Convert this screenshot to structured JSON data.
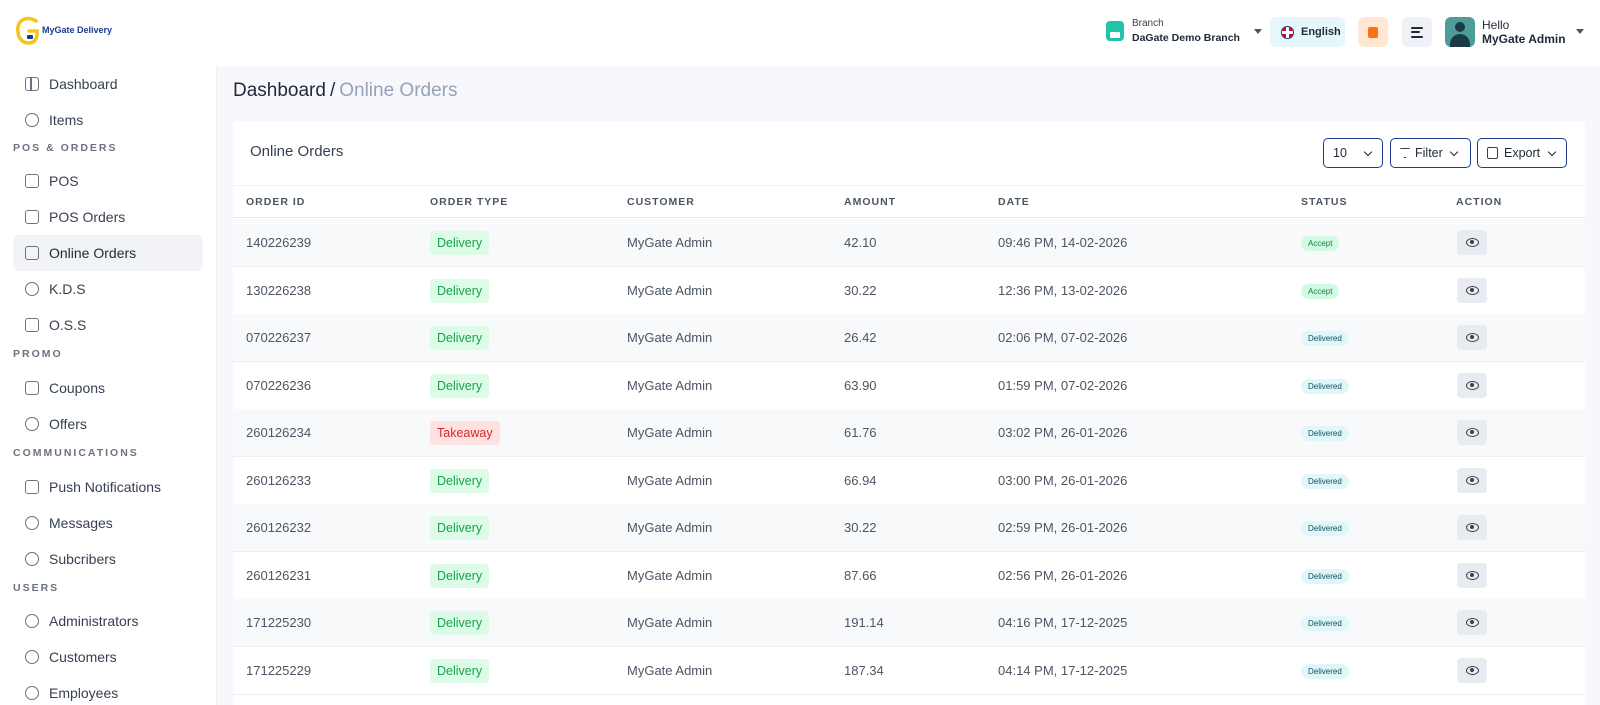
{
  "app": {
    "logo_text": "MyGate Delivery",
    "logo_icon": "g-logo-icon"
  },
  "header": {
    "branch_label": "Branch",
    "branch_name": "DaGate Demo Branch",
    "language": "English",
    "greeting": "Hello",
    "user_name": "MyGate Admin"
  },
  "sidebar": {
    "items": [
      {
        "label": "Dashboard",
        "icon": "grid-icon"
      },
      {
        "label": "Items",
        "icon": "box-icon"
      },
      {
        "label": "POS",
        "icon": "receipt-icon"
      },
      {
        "label": "POS Orders",
        "icon": "file-icon"
      },
      {
        "label": "Online Orders",
        "icon": "bag-icon"
      },
      {
        "label": "K.D.S",
        "icon": "chef-icon"
      },
      {
        "label": "O.S.S",
        "icon": "display-icon"
      },
      {
        "label": "Coupons",
        "icon": "ticket-icon"
      },
      {
        "label": "Offers",
        "icon": "discount-icon"
      },
      {
        "label": "Push Notifications",
        "icon": "bell-icon"
      },
      {
        "label": "Messages",
        "icon": "chat-icon"
      },
      {
        "label": "Subcribers",
        "icon": "subscriber-icon"
      },
      {
        "label": "Administrators",
        "icon": "user-icon"
      },
      {
        "label": "Customers",
        "icon": "users-icon"
      },
      {
        "label": "Employees",
        "icon": "employee-icon"
      }
    ],
    "sections": [
      "POS & ORDERS",
      "PROMO",
      "COMMUNICATIONS",
      "USERS"
    ]
  },
  "breadcrumb": {
    "root": "Dashboard",
    "separator": "/",
    "current": "Online Orders"
  },
  "card": {
    "title": "Online Orders",
    "per_page": "10",
    "filter_label": "Filter",
    "export_label": "Export"
  },
  "table": {
    "columns": [
      "ORDER ID",
      "ORDER TYPE",
      "CUSTOMER",
      "AMOUNT",
      "DATE",
      "STATUS",
      "ACTION"
    ],
    "rows": [
      {
        "id": "140226239",
        "type": "Delivery",
        "customer": "MyGate Admin",
        "amount": "42.10",
        "date": "09:46 PM, 14-02-2026",
        "status": "Accept"
      },
      {
        "id": "130226238",
        "type": "Delivery",
        "customer": "MyGate Admin",
        "amount": "30.22",
        "date": "12:36 PM, 13-02-2026",
        "status": "Accept"
      },
      {
        "id": "070226237",
        "type": "Delivery",
        "customer": "MyGate Admin",
        "amount": "26.42",
        "date": "02:06 PM, 07-02-2026",
        "status": "Delivered"
      },
      {
        "id": "070226236",
        "type": "Delivery",
        "customer": "MyGate Admin",
        "amount": "63.90",
        "date": "01:59 PM, 07-02-2026",
        "status": "Delivered"
      },
      {
        "id": "260126234",
        "type": "Takeaway",
        "customer": "MyGate Admin",
        "amount": "61.76",
        "date": "03:02 PM, 26-01-2026",
        "status": "Delivered"
      },
      {
        "id": "260126233",
        "type": "Delivery",
        "customer": "MyGate Admin",
        "amount": "66.94",
        "date": "03:00 PM, 26-01-2026",
        "status": "Delivered"
      },
      {
        "id": "260126232",
        "type": "Delivery",
        "customer": "MyGate Admin",
        "amount": "30.22",
        "date": "02:59 PM, 26-01-2026",
        "status": "Delivered"
      },
      {
        "id": "260126231",
        "type": "Delivery",
        "customer": "MyGate Admin",
        "amount": "87.66",
        "date": "02:56 PM, 26-01-2026",
        "status": "Delivered"
      },
      {
        "id": "171225230",
        "type": "Delivery",
        "customer": "MyGate Admin",
        "amount": "191.14",
        "date": "04:16 PM, 17-12-2025",
        "status": "Delivered"
      },
      {
        "id": "171225229",
        "type": "Delivery",
        "customer": "MyGate Admin",
        "amount": "187.34",
        "date": "04:14 PM, 17-12-2025",
        "status": "Delivered"
      }
    ]
  },
  "colors": {
    "accent": "#1e3a8a",
    "logo": "#f5c518",
    "delivery": "#16a34a",
    "takeaway": "#dc2626"
  }
}
